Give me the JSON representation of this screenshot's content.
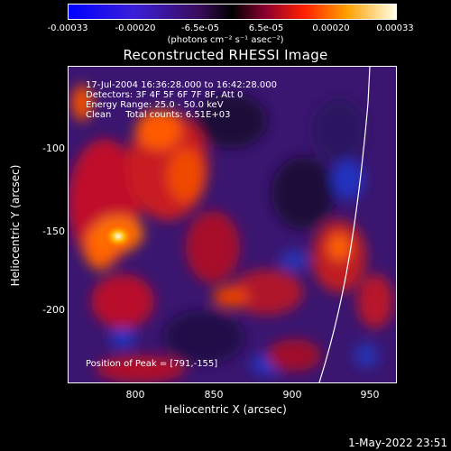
{
  "colorbar": {
    "ticks": [
      "-0.00033",
      "-0.00020",
      "-6.5e-05",
      "6.5e-05",
      "0.00020",
      "0.00033"
    ],
    "units": "(photons cm⁻² s⁻¹ asec⁻²)"
  },
  "title": "Reconstructed RHESSI Image",
  "info": {
    "time": "17-Jul-2004 16:36:28.000 to 16:42:28.000",
    "detectors": "Detectors: 3F 4F 5F 6F 7F 8F, Att 0",
    "energy": "Energy Range: 25.0 - 50.0 keV",
    "clean": "Clean     Total counts: 6.51E+03",
    "peak": "Position of Peak = [791,-155]"
  },
  "axes": {
    "xlabel": "Heliocentric X (arcsec)",
    "ylabel": "Heliocentric Y (arcsec)",
    "xticks": [
      "800",
      "850",
      "900",
      "950"
    ],
    "yticks": [
      "-100",
      "-150",
      "-200"
    ]
  },
  "datestamp": "1-May-2022 23:51",
  "colors": {
    "background": "#000000",
    "limb": "#ffffff"
  }
}
